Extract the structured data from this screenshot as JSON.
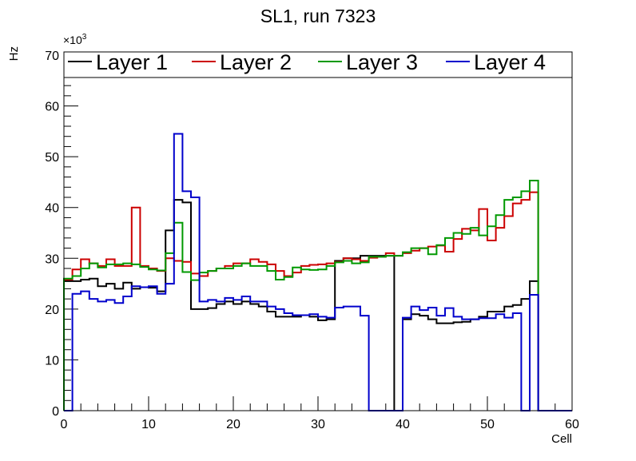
{
  "chart_data": {
    "type": "line",
    "style": "step-histogram",
    "title": "SL1, run 7323",
    "xlabel": "Cell",
    "ylabel": "Hz",
    "y_multiplier": "×10",
    "y_multiplier_exp": "3",
    "xlim": [
      0,
      60
    ],
    "ylim": [
      0,
      70
    ],
    "x_ticks": [
      0,
      10,
      20,
      30,
      40,
      50,
      60
    ],
    "y_ticks": [
      0,
      10,
      20,
      30,
      40,
      50,
      60,
      70
    ],
    "legend_position": "top",
    "bin_width": 1,
    "series": [
      {
        "name": "Layer 1",
        "color": "#000000",
        "values": [
          25.5,
          25.5,
          25.8,
          26,
          24.5,
          25,
          24,
          25.2,
          24,
          24.3,
          24.2,
          23.5,
          35.5,
          41.5,
          41,
          20,
          20,
          20.2,
          21,
          21.5,
          21,
          21.5,
          21,
          20.5,
          19.5,
          18.5,
          18.5,
          18.5,
          18.8,
          18.5,
          17.8,
          18,
          29.5,
          30,
          30,
          30.5,
          30.5,
          30.5,
          30.5,
          0,
          18,
          19,
          18.7,
          18,
          17.2,
          17.2,
          17.4,
          17.5,
          18,
          18.5,
          19.5,
          19.5,
          20.5,
          20.8,
          22,
          25.5,
          0,
          0,
          0,
          0
        ]
      },
      {
        "name": "Layer 2",
        "color": "#cc0000",
        "values": [
          25.8,
          27.8,
          29.8,
          29,
          28.5,
          29.8,
          28.5,
          28.5,
          40,
          28.5,
          28,
          27.5,
          30,
          29.5,
          29.3,
          27,
          26.5,
          27.5,
          28,
          28.5,
          29,
          29,
          29.8,
          29.3,
          28.8,
          27.5,
          26.5,
          27.2,
          28.5,
          28.7,
          28.8,
          29,
          29.3,
          30,
          29.8,
          29.5,
          30.1,
          30.3,
          31,
          30.5,
          31,
          31.5,
          32,
          32.3,
          32.5,
          31.3,
          33.8,
          35.8,
          35.5,
          39.7,
          33.5,
          36,
          38.3,
          40.8,
          41.5,
          43,
          0,
          0,
          0,
          0
        ]
      },
      {
        "name": "Layer 3",
        "color": "#009900",
        "values": [
          26,
          26.5,
          28,
          29,
          28.2,
          28.8,
          28.8,
          29,
          28.8,
          28.3,
          27.8,
          27.6,
          31,
          37,
          27.3,
          25.7,
          27.2,
          27.5,
          28,
          28,
          28.5,
          29,
          28.5,
          28.5,
          27.5,
          25.8,
          26.3,
          28.2,
          27.8,
          27.7,
          27.8,
          28.5,
          29.2,
          29.5,
          29,
          29.2,
          30.3,
          30.3,
          30.5,
          30.5,
          31.2,
          32,
          32,
          30.8,
          32.6,
          34,
          35,
          34.8,
          36,
          34.5,
          36.3,
          38.5,
          41.5,
          42,
          43.2,
          45.3,
          0,
          0,
          0,
          0
        ]
      },
      {
        "name": "Layer 4",
        "color": "#0000cc",
        "values": [
          0,
          23,
          23.5,
          22,
          21.5,
          21.8,
          21.2,
          22.5,
          24.5,
          24.3,
          24.5,
          23,
          25,
          54.5,
          43.2,
          42,
          21.5,
          21.8,
          21.5,
          22.2,
          21.8,
          22.5,
          21.5,
          21.5,
          20.5,
          20,
          19.2,
          18.8,
          18.8,
          19,
          18.5,
          18.3,
          20.3,
          20.5,
          20.5,
          18.7,
          0,
          0,
          0,
          0,
          18.3,
          20.5,
          19.8,
          20.3,
          18.7,
          20.2,
          18.5,
          18,
          18,
          18.2,
          18.2,
          19,
          18.3,
          19.2,
          0,
          22.8,
          0,
          0,
          0,
          0
        ]
      }
    ]
  }
}
